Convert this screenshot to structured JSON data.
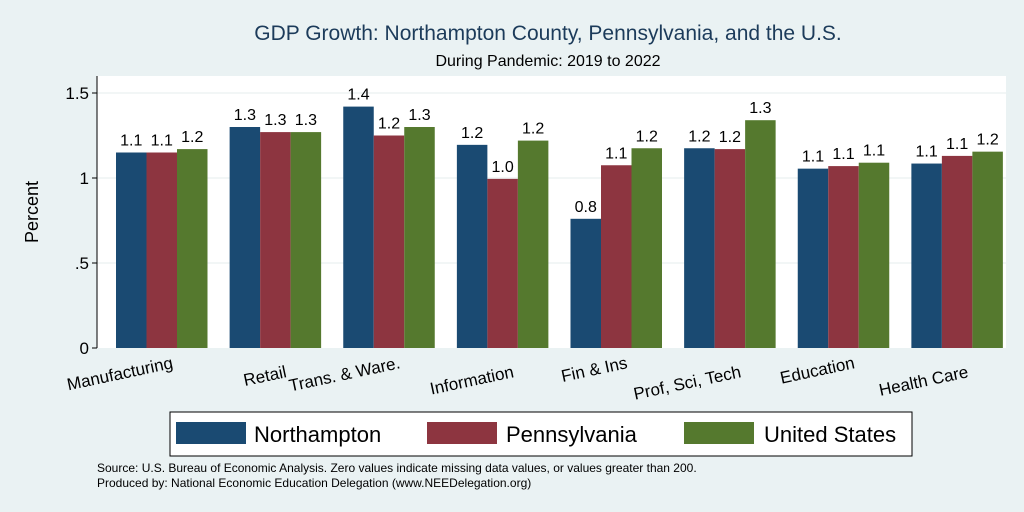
{
  "chart_data": {
    "type": "bar",
    "title": "GDP Growth: Northampton County, Pennsylvania, and the U.S.",
    "subtitle": "During Pandemic: 2019 to 2022",
    "xlabel": "",
    "ylabel": "Percent",
    "ylim": [
      0,
      1.6
    ],
    "yticks": [
      {
        "value": 0,
        "label": "0"
      },
      {
        "value": 0.5,
        "label": ".5"
      },
      {
        "value": 1,
        "label": "1"
      },
      {
        "value": 1.5,
        "label": "1.5"
      }
    ],
    "grid": true,
    "legend_position": "bottom",
    "categories": [
      "Manufacturing",
      "Retail",
      "Trans. & Ware.",
      "Information",
      "Fin & Ins",
      "Prof, Sci, Tech",
      "Education",
      "Health Care"
    ],
    "series": [
      {
        "name": "Northampton",
        "color": "#1a4a72",
        "values": [
          1.15,
          1.3,
          1.42,
          1.195,
          0.76,
          1.175,
          1.055,
          1.085
        ],
        "labels": [
          "1.1",
          "1.3",
          "1.4",
          "1.2",
          "0.8",
          "1.2",
          "1.1",
          "1.1"
        ]
      },
      {
        "name": "Pennsylvania",
        "color": "#8d3540",
        "values": [
          1.15,
          1.27,
          1.25,
          0.995,
          1.075,
          1.17,
          1.07,
          1.13
        ],
        "labels": [
          "1.1",
          "1.3",
          "1.2",
          "1.0",
          "1.1",
          "1.2",
          "1.1",
          "1.1"
        ]
      },
      {
        "name": "United States",
        "color": "#55792e",
        "values": [
          1.17,
          1.27,
          1.3,
          1.22,
          1.175,
          1.34,
          1.09,
          1.155
        ],
        "labels": [
          "1.2",
          "1.3",
          "1.3",
          "1.2",
          "1.2",
          "1.3",
          "1.1",
          "1.2"
        ]
      }
    ],
    "notes": [
      "Source: U.S. Bureau of Economic Analysis. Zero values indicate missing data values, or values greater than 200.",
      "Produced by: National Economic Education Delegation (www.NEEDelegation.org)"
    ]
  }
}
